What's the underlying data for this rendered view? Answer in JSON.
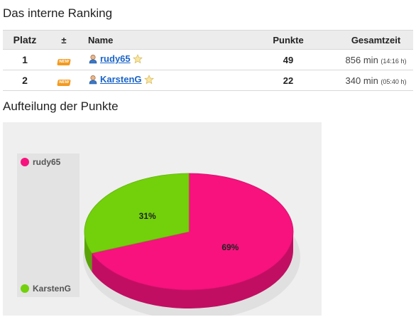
{
  "headings": {
    "ranking": "Das interne Ranking",
    "points": "Aufteilung der Punkte"
  },
  "table": {
    "headers": {
      "rank": "Platz",
      "change": "±",
      "name": "Name",
      "points": "Punkte",
      "time": "Gesamtzeit"
    },
    "rows": [
      {
        "rank": "1",
        "badge": "NEW",
        "name": "rudy65",
        "points": "49",
        "time_main": "856 min",
        "time_detail": "(14:16 h)"
      },
      {
        "rank": "2",
        "badge": "NEW",
        "name": "KarstenG",
        "points": "22",
        "time_main": "340 min",
        "time_detail": "(05:40 h)"
      }
    ]
  },
  "chart_data": {
    "type": "pie",
    "title": "",
    "series": [
      {
        "name": "rudy65",
        "value": 49,
        "label": "69%",
        "color": "#f7127e"
      },
      {
        "name": "KarstenG",
        "value": 22,
        "label": "31%",
        "color": "#72d10a"
      }
    ],
    "legend_position": "left",
    "three_d": true
  },
  "colors": {
    "link": "#1a64c8",
    "header_bg": "#ececec",
    "chart_bg": "#efefef",
    "badge": "#f39a1e"
  }
}
